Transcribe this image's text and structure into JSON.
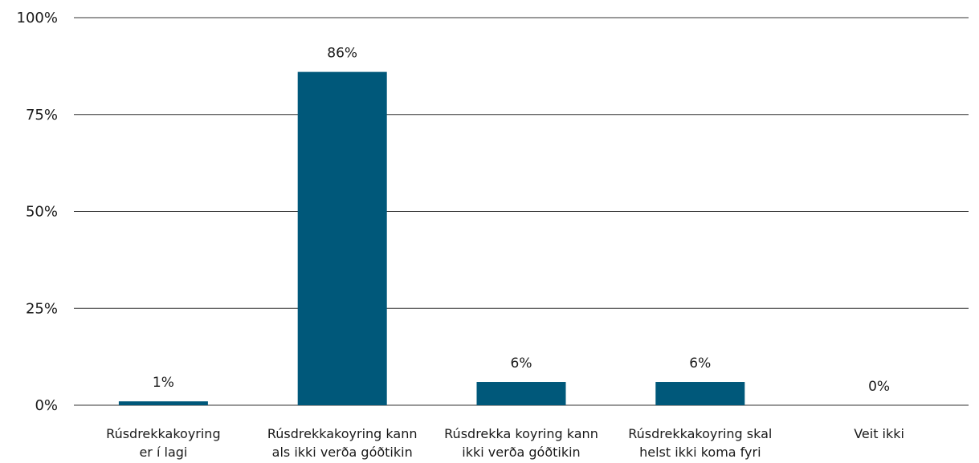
{
  "chart_data": {
    "type": "bar",
    "categories": [
      [
        "Rúsdrekkakoyring",
        "er í lagi"
      ],
      [
        "Rúsdrekkakoyring kann",
        "als ikki verða góðtikin"
      ],
      [
        "Rúsdrekka koyring kann",
        "ikki verða góðtikin"
      ],
      [
        "Rúsdrekkakoyring skal",
        "helst ikki koma fyri"
      ],
      [
        "Veit ikki"
      ]
    ],
    "values": [
      1,
      86,
      6,
      6,
      0
    ],
    "value_labels": [
      "1%",
      "86%",
      "6%",
      "6%",
      "0%"
    ],
    "y_ticks": [
      0,
      25,
      50,
      75,
      100
    ],
    "y_tick_labels": [
      "0%",
      "25%",
      "50%",
      "75%",
      "100%"
    ],
    "ylim": [
      0,
      100
    ],
    "grid": true,
    "bar_color": "#00587a",
    "grid_color": "#333333"
  }
}
